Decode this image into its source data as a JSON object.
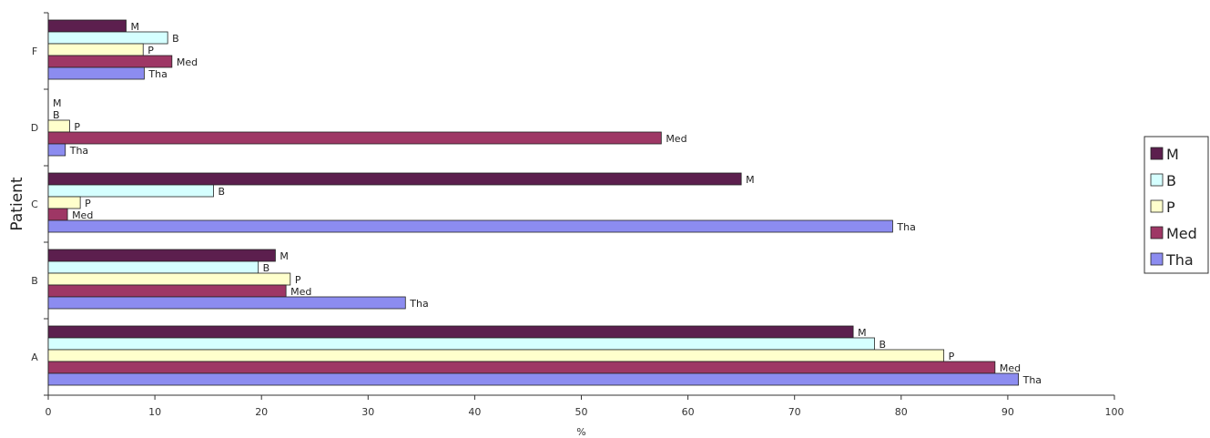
{
  "chart_data": {
    "type": "bar",
    "orientation": "horizontal",
    "xlabel": "%",
    "ylabel": "Patient",
    "xlim": [
      0,
      100
    ],
    "x_ticks": [
      0,
      10,
      20,
      30,
      40,
      50,
      60,
      70,
      80,
      90,
      100
    ],
    "categories": [
      "A",
      "B",
      "C",
      "D",
      "F"
    ],
    "legend_position": "right",
    "grid": false,
    "series": [
      {
        "name": "M",
        "color": "#5C1F4E",
        "values": [
          75.5,
          21.3,
          65.0,
          0.0,
          7.3
        ]
      },
      {
        "name": "B",
        "color": "#D5FFFF",
        "values": [
          77.5,
          19.7,
          15.5,
          0.0,
          11.2
        ]
      },
      {
        "name": "P",
        "color": "#FFFFCC",
        "values": [
          84.0,
          22.7,
          3.0,
          2.0,
          8.9
        ]
      },
      {
        "name": "Med",
        "color": "#9E3765",
        "values": [
          88.8,
          22.3,
          1.8,
          57.5,
          11.6
        ]
      },
      {
        "name": "Tha",
        "color": "#8C8CF0",
        "values": [
          91.0,
          33.5,
          79.2,
          1.6,
          9.0
        ]
      }
    ]
  }
}
